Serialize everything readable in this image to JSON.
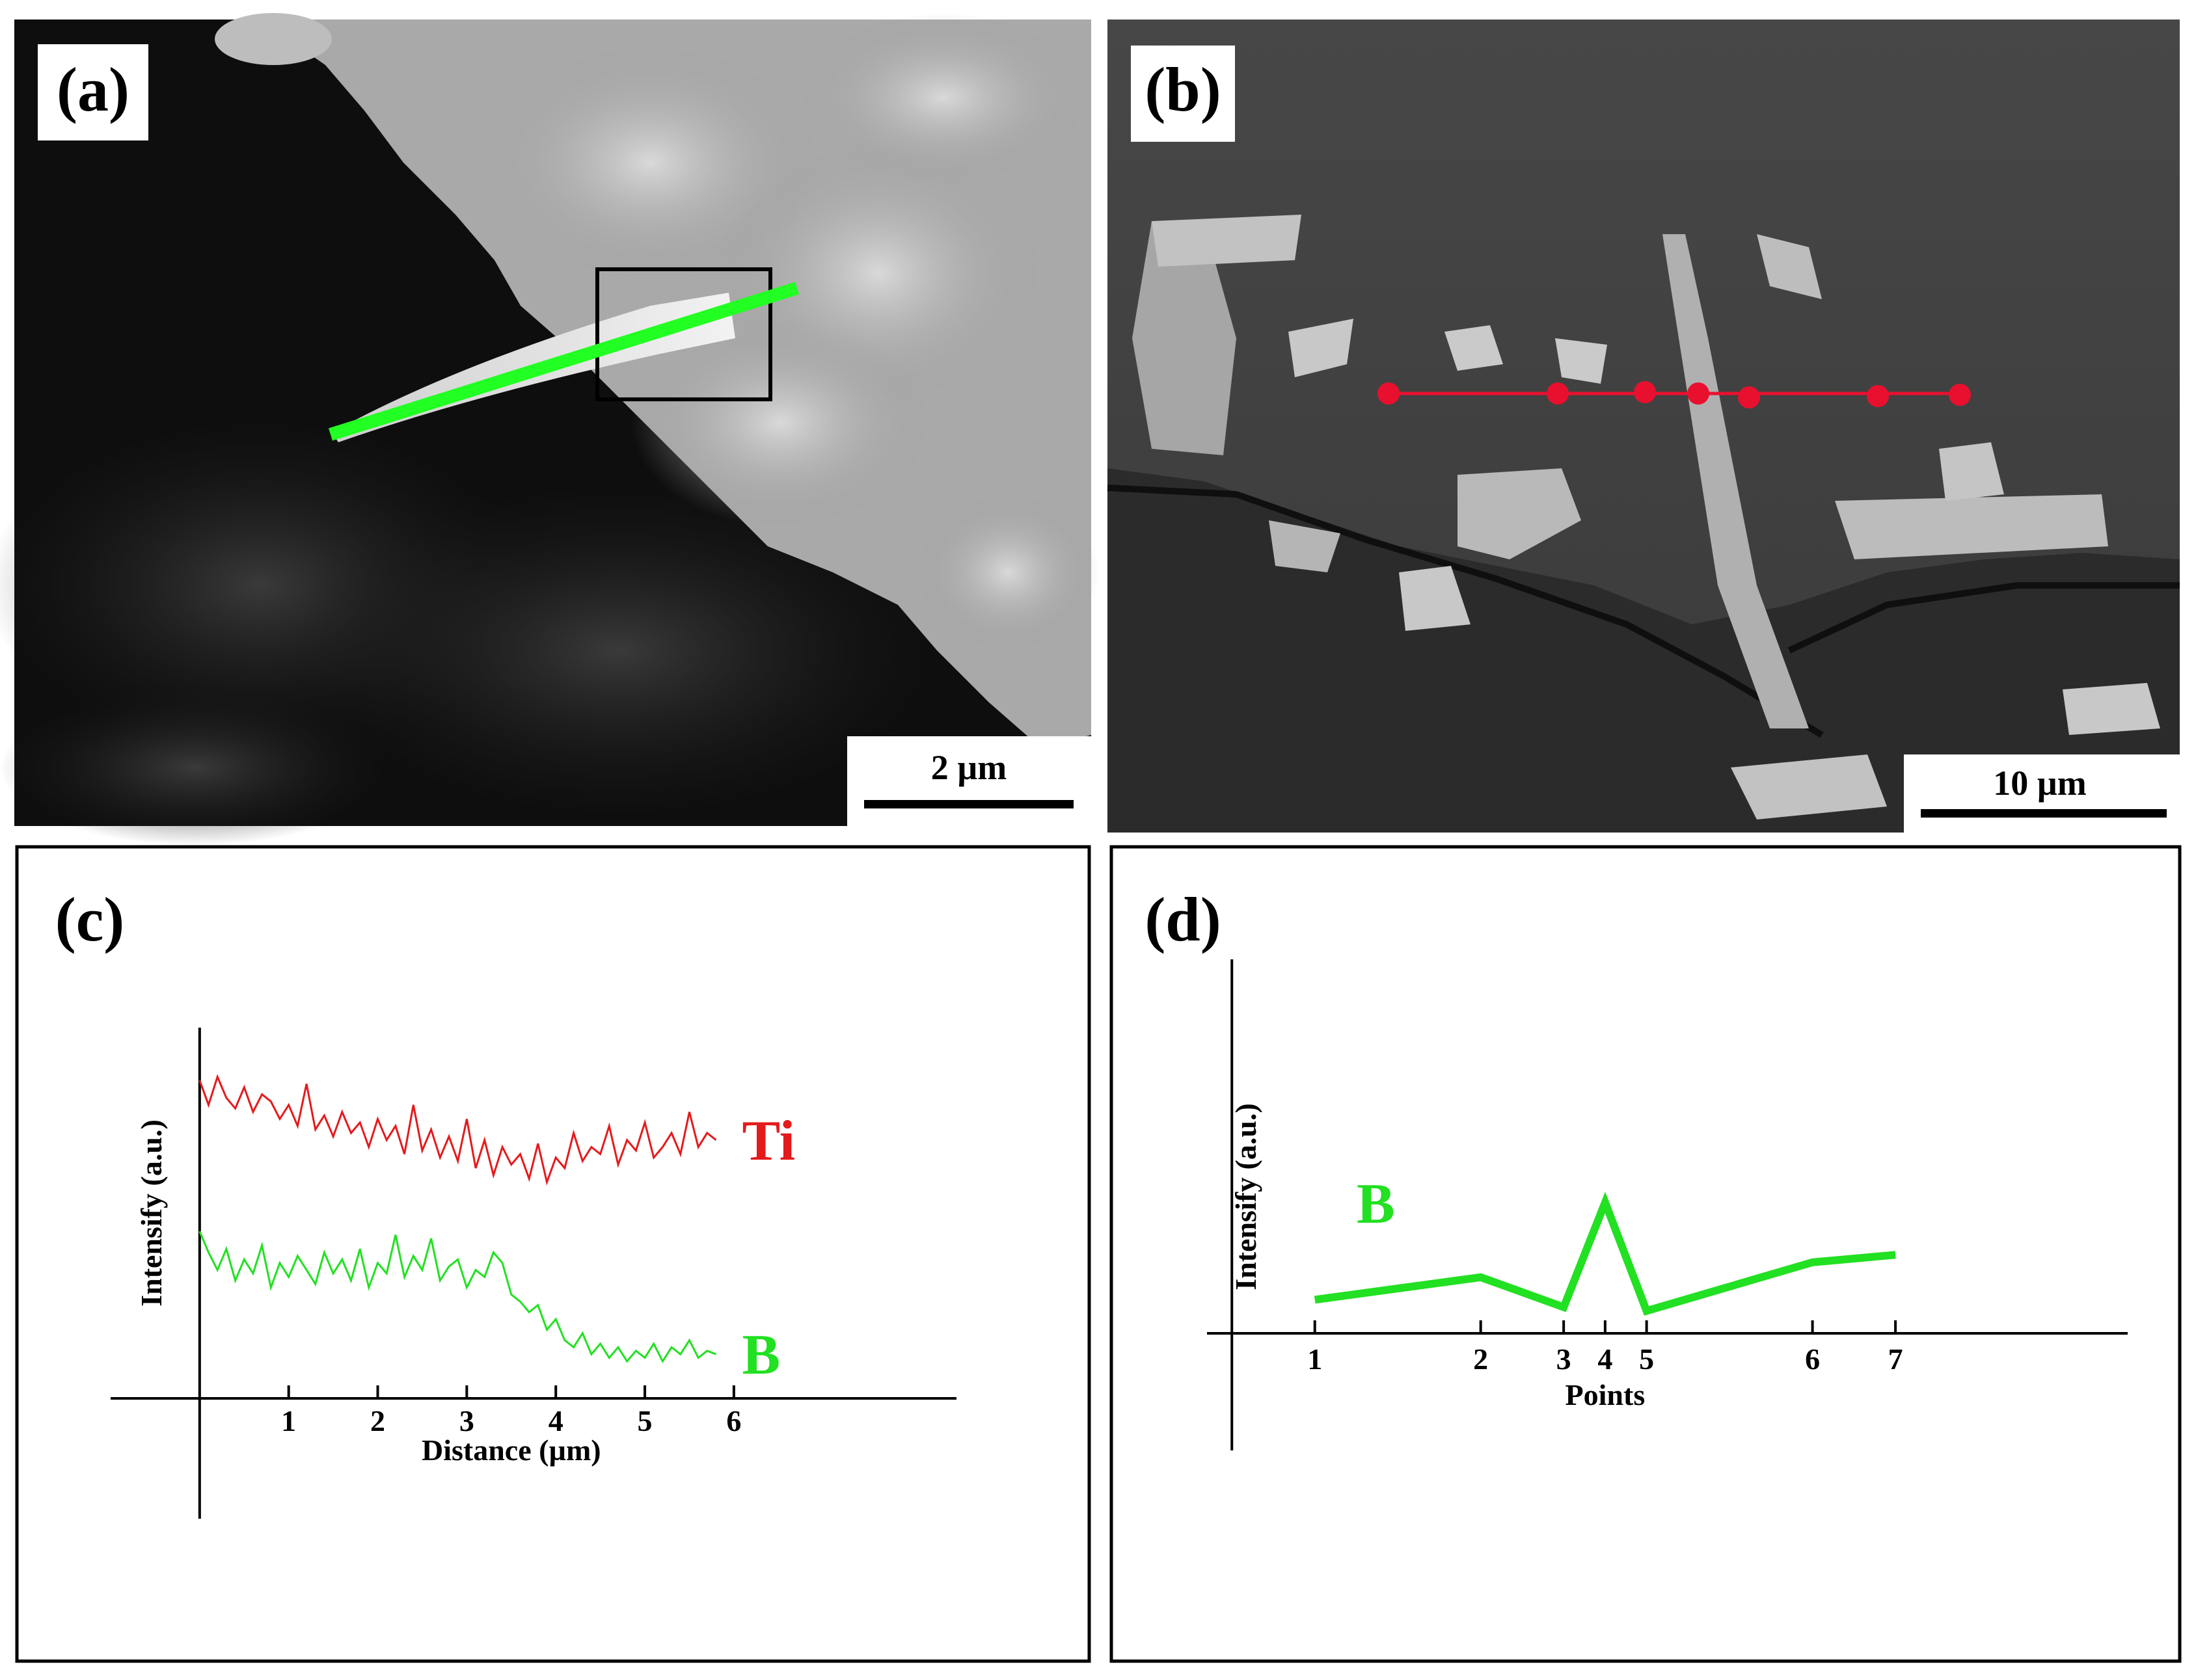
{
  "panels": {
    "a": {
      "label": "(a)",
      "scale_bar": "2 µm"
    },
    "b": {
      "label": "(b)",
      "scale_bar": "10 µm"
    },
    "c": {
      "label": "(c)"
    },
    "d": {
      "label": "(d)"
    }
  },
  "colors": {
    "ti": "#e41a1c",
    "b": "#22e022",
    "scan_line": "#22ff22",
    "points": "#e8102e"
  },
  "chart_data": [
    {
      "type": "line",
      "panel": "c",
      "xlabel": "Distance (µm)",
      "ylabel": "Intensify (a.u.)",
      "xlim": [
        -1,
        8.5
      ],
      "ylim": [
        0,
        1
      ],
      "x_ticks": [
        "1",
        "2",
        "3",
        "4",
        "5",
        "6"
      ],
      "series": [
        {
          "name": "Ti",
          "x": [
            0.0,
            0.1,
            0.2,
            0.3,
            0.4,
            0.5,
            0.6,
            0.7,
            0.8,
            0.9,
            1.0,
            1.1,
            1.2,
            1.3,
            1.4,
            1.5,
            1.6,
            1.7,
            1.8,
            1.9,
            2.0,
            2.1,
            2.2,
            2.3,
            2.4,
            2.5,
            2.6,
            2.7,
            2.8,
            2.9,
            3.0,
            3.1,
            3.2,
            3.3,
            3.4,
            3.5,
            3.6,
            3.7,
            3.8,
            3.9,
            4.0,
            4.1,
            4.2,
            4.3,
            4.4,
            4.5,
            4.6,
            4.7,
            4.8,
            4.9,
            5.0,
            5.1,
            5.2,
            5.3,
            5.4,
            5.5,
            5.6,
            5.7,
            5.8
          ],
          "values": [
            0.85,
            0.78,
            0.86,
            0.8,
            0.77,
            0.83,
            0.76,
            0.81,
            0.79,
            0.74,
            0.78,
            0.72,
            0.84,
            0.71,
            0.75,
            0.69,
            0.76,
            0.7,
            0.73,
            0.66,
            0.74,
            0.68,
            0.72,
            0.64,
            0.78,
            0.65,
            0.71,
            0.63,
            0.69,
            0.62,
            0.74,
            0.6,
            0.68,
            0.58,
            0.66,
            0.61,
            0.64,
            0.57,
            0.67,
            0.56,
            0.63,
            0.6,
            0.7,
            0.62,
            0.66,
            0.64,
            0.72,
            0.61,
            0.68,
            0.65,
            0.73,
            0.63,
            0.66,
            0.7,
            0.64,
            0.76,
            0.66,
            0.7,
            0.68
          ]
        },
        {
          "name": "B",
          "x": [
            0.0,
            0.1,
            0.2,
            0.3,
            0.4,
            0.5,
            0.6,
            0.7,
            0.8,
            0.9,
            1.0,
            1.1,
            1.2,
            1.3,
            1.4,
            1.5,
            1.6,
            1.7,
            1.8,
            1.9,
            2.0,
            2.1,
            2.2,
            2.3,
            2.4,
            2.5,
            2.6,
            2.7,
            2.8,
            2.9,
            3.0,
            3.1,
            3.2,
            3.3,
            3.4,
            3.5,
            3.6,
            3.7,
            3.8,
            3.9,
            4.0,
            4.1,
            4.2,
            4.3,
            4.4,
            4.5,
            4.6,
            4.7,
            4.8,
            4.9,
            5.0,
            5.1,
            5.2,
            5.3,
            5.4,
            5.5,
            5.6,
            5.7,
            5.8
          ],
          "values": [
            0.42,
            0.36,
            0.31,
            0.37,
            0.28,
            0.34,
            0.3,
            0.38,
            0.26,
            0.33,
            0.29,
            0.35,
            0.31,
            0.27,
            0.36,
            0.3,
            0.34,
            0.28,
            0.37,
            0.26,
            0.33,
            0.3,
            0.41,
            0.29,
            0.35,
            0.31,
            0.4,
            0.28,
            0.32,
            0.34,
            0.26,
            0.31,
            0.29,
            0.36,
            0.33,
            0.24,
            0.22,
            0.19,
            0.21,
            0.14,
            0.17,
            0.11,
            0.09,
            0.13,
            0.07,
            0.1,
            0.06,
            0.09,
            0.05,
            0.08,
            0.06,
            0.1,
            0.05,
            0.09,
            0.07,
            0.11,
            0.06,
            0.08,
            0.07
          ]
        }
      ]
    },
    {
      "type": "line",
      "panel": "d",
      "xlabel": "Points",
      "ylabel": "Intensify (a.u.)",
      "xlim": [
        -0.3,
        10.8
      ],
      "ylim": [
        0,
        1
      ],
      "categories": [
        "1",
        "2",
        "3",
        "4",
        "5",
        "6",
        "7"
      ],
      "series": [
        {
          "name": "B",
          "x": [
            1,
            3,
            4,
            4.5,
            5,
            7,
            8
          ],
          "values": [
            0.09,
            0.15,
            0.07,
            0.35,
            0.06,
            0.19,
            0.21
          ]
        }
      ]
    }
  ]
}
